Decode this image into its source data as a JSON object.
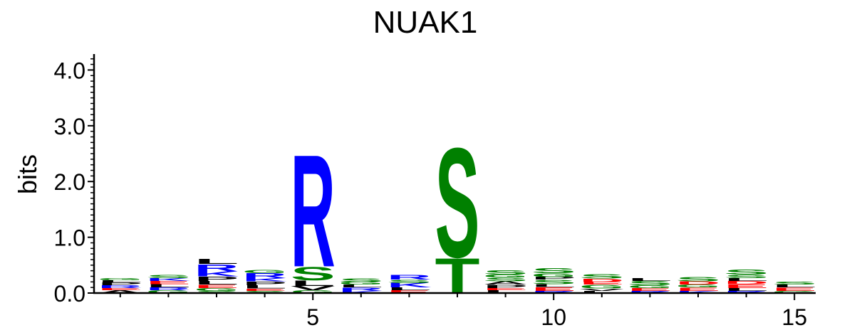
{
  "chart_data": {
    "type": "sequence-logo",
    "title": "NUAK1",
    "ylabel": "bits",
    "ylim": [
      0,
      4.3
    ],
    "yticks": [
      0.0,
      1.0,
      2.0,
      3.0,
      4.0
    ],
    "ytick_labels": [
      "0.0",
      "1.0",
      "2.0",
      "3.0",
      "4.0"
    ],
    "xlim": [
      0.5,
      15.5
    ],
    "xticks": [
      5,
      10,
      15
    ],
    "xtick_labels": [
      "5",
      "10",
      "15"
    ],
    "colors": {
      "basic": "#0000ff",
      "polar": "#008000",
      "acidic": "#ff0000",
      "hydrophobic": "#000000",
      "default": "#000000"
    },
    "letter_colors": {
      "R": "basic",
      "K": "basic",
      "H": "basic",
      "S": "polar",
      "T": "polar",
      "G": "polar",
      "N": "polar",
      "Q": "polar",
      "Y": "polar",
      "C": "polar",
      "D": "acidic",
      "E": "acidic",
      "L": "hydrophobic",
      "V": "hydrophobic",
      "I": "hydrophobic",
      "A": "hydrophobic",
      "P": "hydrophobic",
      "F": "hydrophobic",
      "M": "hydrophobic",
      "W": "hydrophobic"
    },
    "positions": [
      {
        "pos": 1,
        "letters": [
          {
            "l": "A",
            "h": 0.05
          },
          {
            "l": "E",
            "h": 0.04
          },
          {
            "l": "R",
            "h": 0.05
          },
          {
            "l": "P",
            "h": 0.05
          },
          {
            "l": "L",
            "h": 0.04
          },
          {
            "l": "G",
            "h": 0.04
          }
        ]
      },
      {
        "pos": 2,
        "letters": [
          {
            "l": "G",
            "h": 0.05
          },
          {
            "l": "R",
            "h": 0.05
          },
          {
            "l": "L",
            "h": 0.06
          },
          {
            "l": "E",
            "h": 0.06
          },
          {
            "l": "K",
            "h": 0.05
          },
          {
            "l": "S",
            "h": 0.06
          }
        ]
      },
      {
        "pos": 3,
        "letters": [
          {
            "l": "S",
            "h": 0.04
          },
          {
            "l": "G",
            "h": 0.05
          },
          {
            "l": "E",
            "h": 0.06
          },
          {
            "l": "L",
            "h": 0.07
          },
          {
            "l": "P",
            "h": 0.08
          },
          {
            "l": "K",
            "h": 0.09
          },
          {
            "l": "R",
            "h": 0.13
          },
          {
            "l": "L",
            "h": 0.09
          }
        ]
      },
      {
        "pos": 4,
        "letters": [
          {
            "l": "S",
            "h": 0.04
          },
          {
            "l": "E",
            "h": 0.04
          },
          {
            "l": "L",
            "h": 0.06
          },
          {
            "l": "P",
            "h": 0.07
          },
          {
            "l": "K",
            "h": 0.06
          },
          {
            "l": "R",
            "h": 0.09
          },
          {
            "l": "G",
            "h": 0.06
          }
        ]
      },
      {
        "pos": 5,
        "letters": [
          {
            "l": "G",
            "h": 0.05
          },
          {
            "l": "V",
            "h": 0.08
          },
          {
            "l": "L",
            "h": 0.1
          },
          {
            "l": "S",
            "h": 0.25
          },
          {
            "l": "R",
            "h": 2.07
          }
        ]
      },
      {
        "pos": 6,
        "letters": [
          {
            "l": "K",
            "h": 0.04
          },
          {
            "l": "R",
            "h": 0.06
          },
          {
            "l": "L",
            "h": 0.05
          },
          {
            "l": "G",
            "h": 0.05
          },
          {
            "l": "S",
            "h": 0.07
          }
        ]
      },
      {
        "pos": 7,
        "letters": [
          {
            "l": "E",
            "h": 0.05
          },
          {
            "l": "L",
            "h": 0.05
          },
          {
            "l": "K",
            "h": 0.08
          },
          {
            "l": "S",
            "h": 0.06
          },
          {
            "l": "R",
            "h": 0.08
          }
        ]
      },
      {
        "pos": 8,
        "letters": [
          {
            "l": "T",
            "h": 0.65
          },
          {
            "l": "S",
            "h": 2.02
          }
        ]
      },
      {
        "pos": 9,
        "letters": [
          {
            "l": "L",
            "h": 0.05
          },
          {
            "l": "E",
            "h": 0.04
          },
          {
            "l": "P",
            "h": 0.06
          },
          {
            "l": "A",
            "h": 0.06
          },
          {
            "l": "S",
            "h": 0.07
          },
          {
            "l": "G",
            "h": 0.05
          },
          {
            "l": "S",
            "h": 0.08
          }
        ]
      },
      {
        "pos": 10,
        "letters": [
          {
            "l": "R",
            "h": 0.04
          },
          {
            "l": "E",
            "h": 0.07
          },
          {
            "l": "L",
            "h": 0.05
          },
          {
            "l": "S",
            "h": 0.08
          },
          {
            "l": "P",
            "h": 0.05
          },
          {
            "l": "G",
            "h": 0.07
          },
          {
            "l": "S",
            "h": 0.09
          }
        ]
      },
      {
        "pos": 11,
        "letters": [
          {
            "l": "L",
            "h": 0.04
          },
          {
            "l": "V",
            "h": 0.04
          },
          {
            "l": "G",
            "h": 0.07
          },
          {
            "l": "E",
            "h": 0.05
          },
          {
            "l": "D",
            "h": 0.06
          },
          {
            "l": "S",
            "h": 0.08
          }
        ]
      },
      {
        "pos": 12,
        "letters": [
          {
            "l": "R",
            "h": 0.04
          },
          {
            "l": "E",
            "h": 0.05
          },
          {
            "l": "G",
            "h": 0.05
          },
          {
            "l": "S",
            "h": 0.08
          },
          {
            "l": "L",
            "h": 0.05
          }
        ]
      },
      {
        "pos": 13,
        "letters": [
          {
            "l": "K",
            "h": 0.04
          },
          {
            "l": "E",
            "h": 0.06
          },
          {
            "l": "G",
            "h": 0.05
          },
          {
            "l": "D",
            "h": 0.06
          },
          {
            "l": "S",
            "h": 0.08
          }
        ]
      },
      {
        "pos": 14,
        "letters": [
          {
            "l": "R",
            "h": 0.04
          },
          {
            "l": "L",
            "h": 0.05
          },
          {
            "l": "E",
            "h": 0.07
          },
          {
            "l": "D",
            "h": 0.06
          },
          {
            "l": "L",
            "h": 0.05
          },
          {
            "l": "S",
            "h": 0.06
          },
          {
            "l": "S",
            "h": 0.09
          }
        ]
      },
      {
        "pos": 15,
        "letters": [
          {
            "l": "G",
            "h": 0.04
          },
          {
            "l": "E",
            "h": 0.06
          },
          {
            "l": "L",
            "h": 0.05
          },
          {
            "l": "S",
            "h": 0.05
          }
        ]
      }
    ]
  }
}
